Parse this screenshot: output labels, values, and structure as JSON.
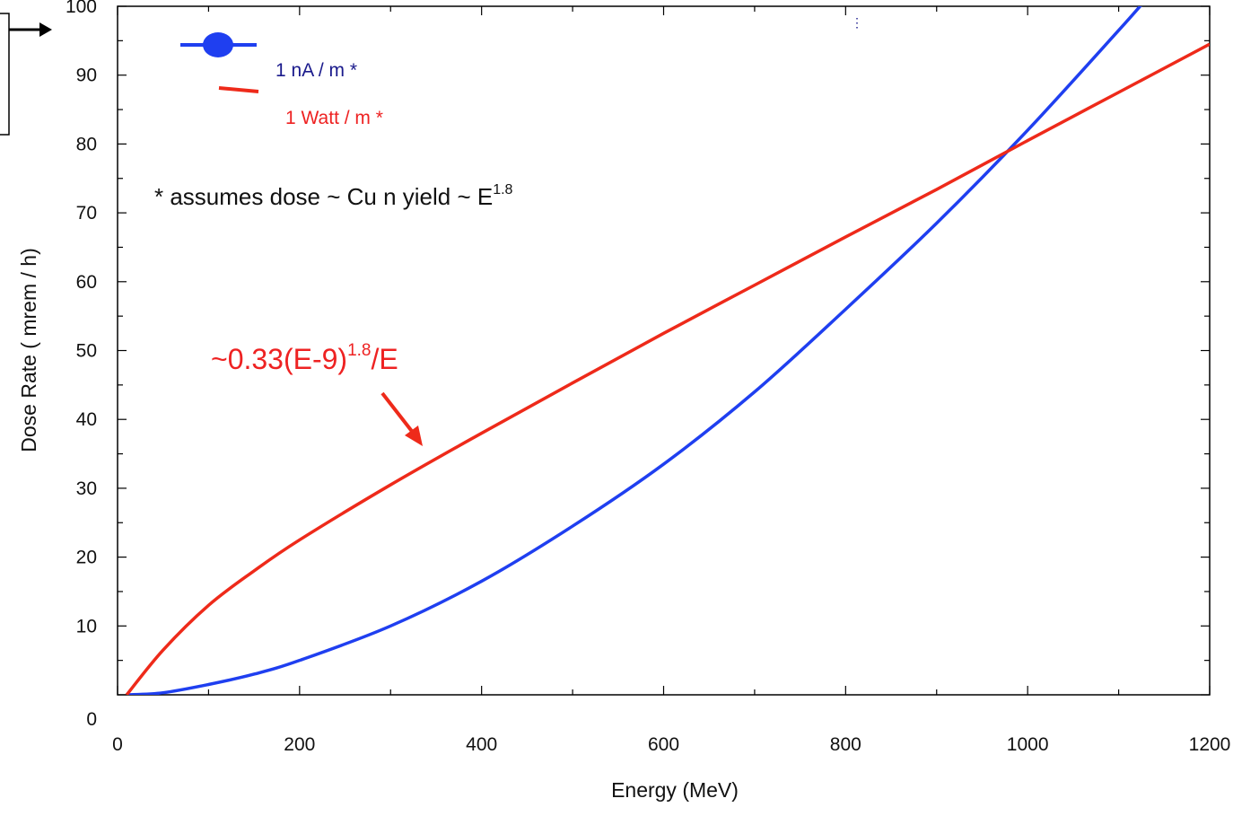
{
  "chart_data": {
    "type": "line",
    "xlabel": "Energy (MeV)",
    "ylabel": "Dose Rate ( mrem / h)",
    "xlim": [
      0,
      1200
    ],
    "ylim": [
      0,
      100
    ],
    "x_ticks": [
      "0",
      "200",
      "400",
      "600",
      "800",
      "1000",
      "1200"
    ],
    "y_ticks": [
      "0",
      "10",
      "20",
      "30",
      "40",
      "50",
      "60",
      "70",
      "80",
      "90",
      "100"
    ],
    "grid": false,
    "legend_position": "top-left",
    "series": [
      {
        "name": "1 nA / m *",
        "color": "#1f3ff0",
        "marker": "circle",
        "x": [
          10,
          50,
          100,
          150,
          200,
          300,
          400,
          500,
          600,
          700,
          800,
          900,
          1000,
          1100,
          1130
        ],
        "y": [
          0,
          0.3,
          1.5,
          3.0,
          5.0,
          10.0,
          16.5,
          24.5,
          33.5,
          44.0,
          56.0,
          68.5,
          82.0,
          96.5,
          101
        ]
      },
      {
        "name": "1 Watt / m  *",
        "color": "#ee2a1a",
        "marker": "none",
        "x": [
          10,
          50,
          100,
          150,
          200,
          300,
          400,
          500,
          600,
          700,
          800,
          900,
          1000,
          1100,
          1200
        ],
        "y": [
          0,
          6.5,
          13.0,
          18.0,
          22.5,
          30.5,
          38.0,
          45.3,
          52.5,
          59.5,
          66.5,
          73.4,
          80.5,
          87.5,
          94.5
        ]
      }
    ],
    "annotations": {
      "note_text": "* assumes dose ~ Cu n yield ~ E",
      "note_sup": "1.8",
      "formula_text_a": "~0.33(E-9)",
      "formula_sup": "1.8",
      "formula_text_b": "/E"
    }
  }
}
